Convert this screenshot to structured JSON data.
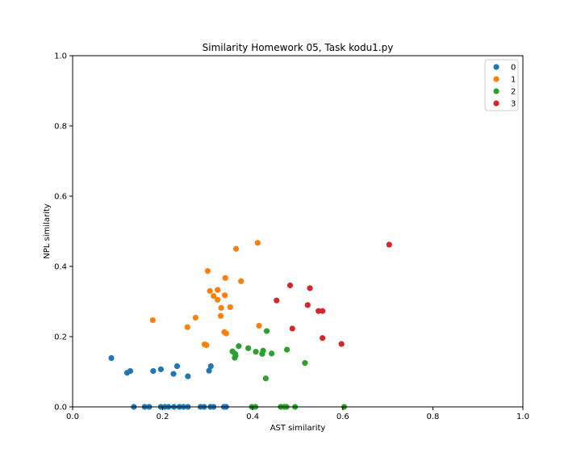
{
  "chart_data": {
    "type": "scatter",
    "title": "Similarity Homework 05, Task kodu1.py",
    "xlabel": "AST similarity",
    "ylabel": "NPL similarity",
    "xlim": [
      0.0,
      1.0
    ],
    "ylim": [
      0.0,
      1.0
    ],
    "xticks": [
      "0.0",
      "0.2",
      "0.4",
      "0.6",
      "0.8",
      "1.0"
    ],
    "yticks": [
      "0.0",
      "0.2",
      "0.4",
      "0.6",
      "0.8",
      "1.0"
    ],
    "grid": false,
    "legend_position": "top-right",
    "series": [
      {
        "name": "0",
        "color": "#1f77b4",
        "points": [
          [
            0.086,
            0.139
          ],
          [
            0.121,
            0.097
          ],
          [
            0.128,
            0.102
          ],
          [
            0.179,
            0.102
          ],
          [
            0.196,
            0.107
          ],
          [
            0.224,
            0.094
          ],
          [
            0.232,
            0.116
          ],
          [
            0.256,
            0.087
          ],
          [
            0.303,
            0.103
          ],
          [
            0.307,
            0.116
          ],
          [
            0.136,
            0.0
          ],
          [
            0.16,
            0.0
          ],
          [
            0.17,
            0.0
          ],
          [
            0.196,
            0.0
          ],
          [
            0.205,
            0.0
          ],
          [
            0.213,
            0.0
          ],
          [
            0.225,
            0.0
          ],
          [
            0.237,
            0.0
          ],
          [
            0.246,
            0.0
          ],
          [
            0.256,
            0.0
          ],
          [
            0.284,
            0.0
          ],
          [
            0.292,
            0.0
          ],
          [
            0.306,
            0.0
          ],
          [
            0.313,
            0.0
          ],
          [
            0.336,
            0.0
          ],
          [
            0.341,
            0.0
          ]
        ]
      },
      {
        "name": "1",
        "color": "#ff7f0e",
        "points": [
          [
            0.178,
            0.247
          ],
          [
            0.255,
            0.227
          ],
          [
            0.273,
            0.254
          ],
          [
            0.293,
            0.178
          ],
          [
            0.297,
            0.176
          ],
          [
            0.3,
            0.387
          ],
          [
            0.305,
            0.33
          ],
          [
            0.313,
            0.316
          ],
          [
            0.322,
            0.305
          ],
          [
            0.322,
            0.333
          ],
          [
            0.329,
            0.259
          ],
          [
            0.33,
            0.282
          ],
          [
            0.337,
            0.213
          ],
          [
            0.338,
            0.318
          ],
          [
            0.339,
            0.367
          ],
          [
            0.341,
            0.209
          ],
          [
            0.35,
            0.284
          ],
          [
            0.363,
            0.45
          ],
          [
            0.374,
            0.358
          ],
          [
            0.411,
            0.467
          ],
          [
            0.414,
            0.231
          ]
        ]
      },
      {
        "name": "2",
        "color": "#2ca02c",
        "points": [
          [
            0.355,
            0.158
          ],
          [
            0.36,
            0.14
          ],
          [
            0.361,
            0.151
          ],
          [
            0.362,
            0.146
          ],
          [
            0.369,
            0.173
          ],
          [
            0.39,
            0.167
          ],
          [
            0.407,
            0.157
          ],
          [
            0.421,
            0.151
          ],
          [
            0.423,
            0.16
          ],
          [
            0.429,
            0.081
          ],
          [
            0.431,
            0.216
          ],
          [
            0.442,
            0.152
          ],
          [
            0.476,
            0.163
          ],
          [
            0.516,
            0.125
          ],
          [
            0.398,
            0.0
          ],
          [
            0.406,
            0.0
          ],
          [
            0.462,
            0.0
          ],
          [
            0.47,
            0.0
          ],
          [
            0.475,
            0.0
          ],
          [
            0.494,
            0.0
          ],
          [
            0.603,
            0.0
          ]
        ]
      },
      {
        "name": "3",
        "color": "#d62728",
        "points": [
          [
            0.453,
            0.303
          ],
          [
            0.483,
            0.346
          ],
          [
            0.488,
            0.223
          ],
          [
            0.522,
            0.29
          ],
          [
            0.527,
            0.338
          ],
          [
            0.546,
            0.273
          ],
          [
            0.555,
            0.273
          ],
          [
            0.555,
            0.196
          ],
          [
            0.597,
            0.179
          ],
          [
            0.703,
            0.462
          ]
        ]
      }
    ]
  }
}
